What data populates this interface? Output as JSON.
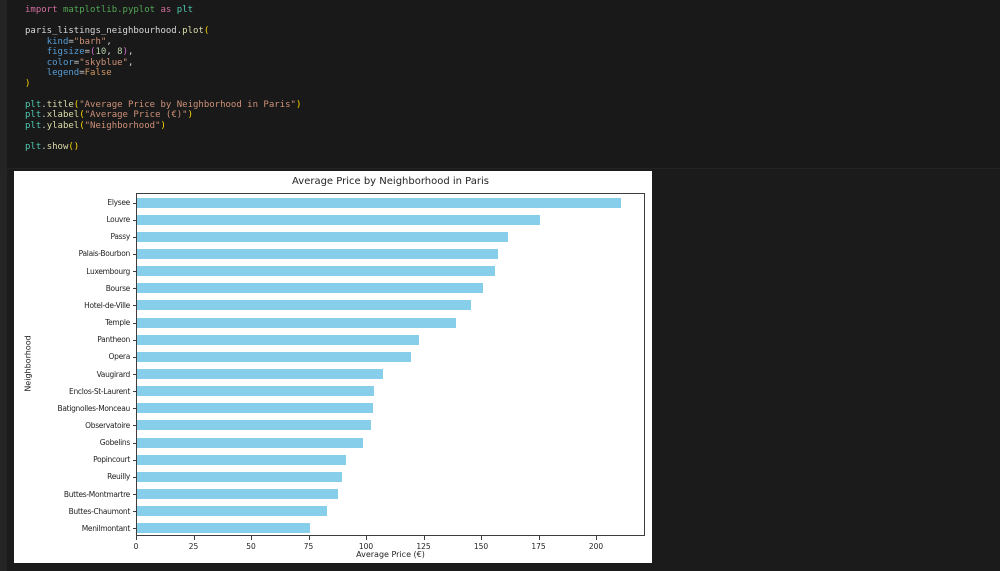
{
  "editor": {
    "syntax_colors": {
      "plain": "#d4d4d4",
      "kw": "#d16d9e",
      "mod": "#53a656",
      "plt": "#4ec9b0",
      "var": "#d8d8d8",
      "fn": "#dcdcaa",
      "param": "#569cd6",
      "str": "#ce9178",
      "num": "#b5cea8",
      "brk1": "#ffd700",
      "brk2": "#da70d6",
      "const": "#d19a66"
    },
    "code_lines": [
      [
        [
          "kw",
          "import"
        ],
        [
          "plain",
          " "
        ],
        [
          "mod",
          "matplotlib.pyplot"
        ],
        [
          "plain",
          " "
        ],
        [
          "kw",
          "as"
        ],
        [
          "plain",
          " "
        ],
        [
          "plt",
          "plt"
        ]
      ],
      [],
      [
        [
          "var",
          "paris_listings_neighbourhood"
        ],
        [
          "plain",
          "."
        ],
        [
          "fn",
          "plot"
        ],
        [
          "brk1",
          "("
        ]
      ],
      [
        [
          "plain",
          "    "
        ],
        [
          "param",
          "kind"
        ],
        [
          "plain",
          "="
        ],
        [
          "str",
          "\"barh\""
        ],
        [
          "plain",
          ","
        ]
      ],
      [
        [
          "plain",
          "    "
        ],
        [
          "param",
          "figsize"
        ],
        [
          "plain",
          "="
        ],
        [
          "brk2",
          "("
        ],
        [
          "num",
          "10"
        ],
        [
          "plain",
          ", "
        ],
        [
          "num",
          "8"
        ],
        [
          "brk2",
          ")"
        ],
        [
          "plain",
          ","
        ]
      ],
      [
        [
          "plain",
          "    "
        ],
        [
          "param",
          "color"
        ],
        [
          "plain",
          "="
        ],
        [
          "str",
          "\"skyblue\""
        ],
        [
          "plain",
          ","
        ]
      ],
      [
        [
          "plain",
          "    "
        ],
        [
          "param",
          "legend"
        ],
        [
          "plain",
          "="
        ],
        [
          "const",
          "False"
        ]
      ],
      [
        [
          "brk1",
          ")"
        ]
      ],
      [],
      [
        [
          "plt",
          "plt"
        ],
        [
          "plain",
          "."
        ],
        [
          "fn",
          "title"
        ],
        [
          "brk1",
          "("
        ],
        [
          "str",
          "\"Average Price by Neighborhood in Paris\""
        ],
        [
          "brk1",
          ")"
        ]
      ],
      [
        [
          "plt",
          "plt"
        ],
        [
          "plain",
          "."
        ],
        [
          "fn",
          "xlabel"
        ],
        [
          "brk1",
          "("
        ],
        [
          "str",
          "\"Average Price (€)\""
        ],
        [
          "brk1",
          ")"
        ]
      ],
      [
        [
          "plt",
          "plt"
        ],
        [
          "plain",
          "."
        ],
        [
          "fn",
          "ylabel"
        ],
        [
          "brk1",
          "("
        ],
        [
          "str",
          "\"Neighborhood\""
        ],
        [
          "brk1",
          ")"
        ]
      ],
      [],
      [
        [
          "plt",
          "plt"
        ],
        [
          "plain",
          "."
        ],
        [
          "fn",
          "show"
        ],
        [
          "brk1",
          "("
        ],
        [
          "brk1",
          ")"
        ]
      ]
    ]
  },
  "chart_data": {
    "type": "bar",
    "orientation": "horizontal",
    "title": "Average Price by Neighborhood in Paris",
    "xlabel": "Average Price (€)",
    "ylabel": "Neighborhood",
    "categories": [
      "Elysee",
      "Louvre",
      "Passy",
      "Palais-Bourbon",
      "Luxembourg",
      "Bourse",
      "Hotel-de-Ville",
      "Temple",
      "Pantheon",
      "Opera",
      "Vaugirard",
      "Enclos-St-Laurent",
      "Batignolles-Monceau",
      "Observatoire",
      "Gobelins",
      "Popincourt",
      "Reuilly",
      "Buttes-Montmartre",
      "Buttes-Chaumont",
      "Menilmontant"
    ],
    "values": [
      210.5,
      175.3,
      161.5,
      157.0,
      155.8,
      150.5,
      145.0,
      138.5,
      122.8,
      119.0,
      106.9,
      103.0,
      102.6,
      101.6,
      98.1,
      90.7,
      89.1,
      87.4,
      82.8,
      75.1
    ],
    "bar_color": "#87ceeb",
    "xticks": [
      0,
      25,
      50,
      75,
      100,
      125,
      150,
      175,
      200
    ],
    "xlim": [
      0,
      221.3
    ],
    "legend": false,
    "grid": false
  }
}
